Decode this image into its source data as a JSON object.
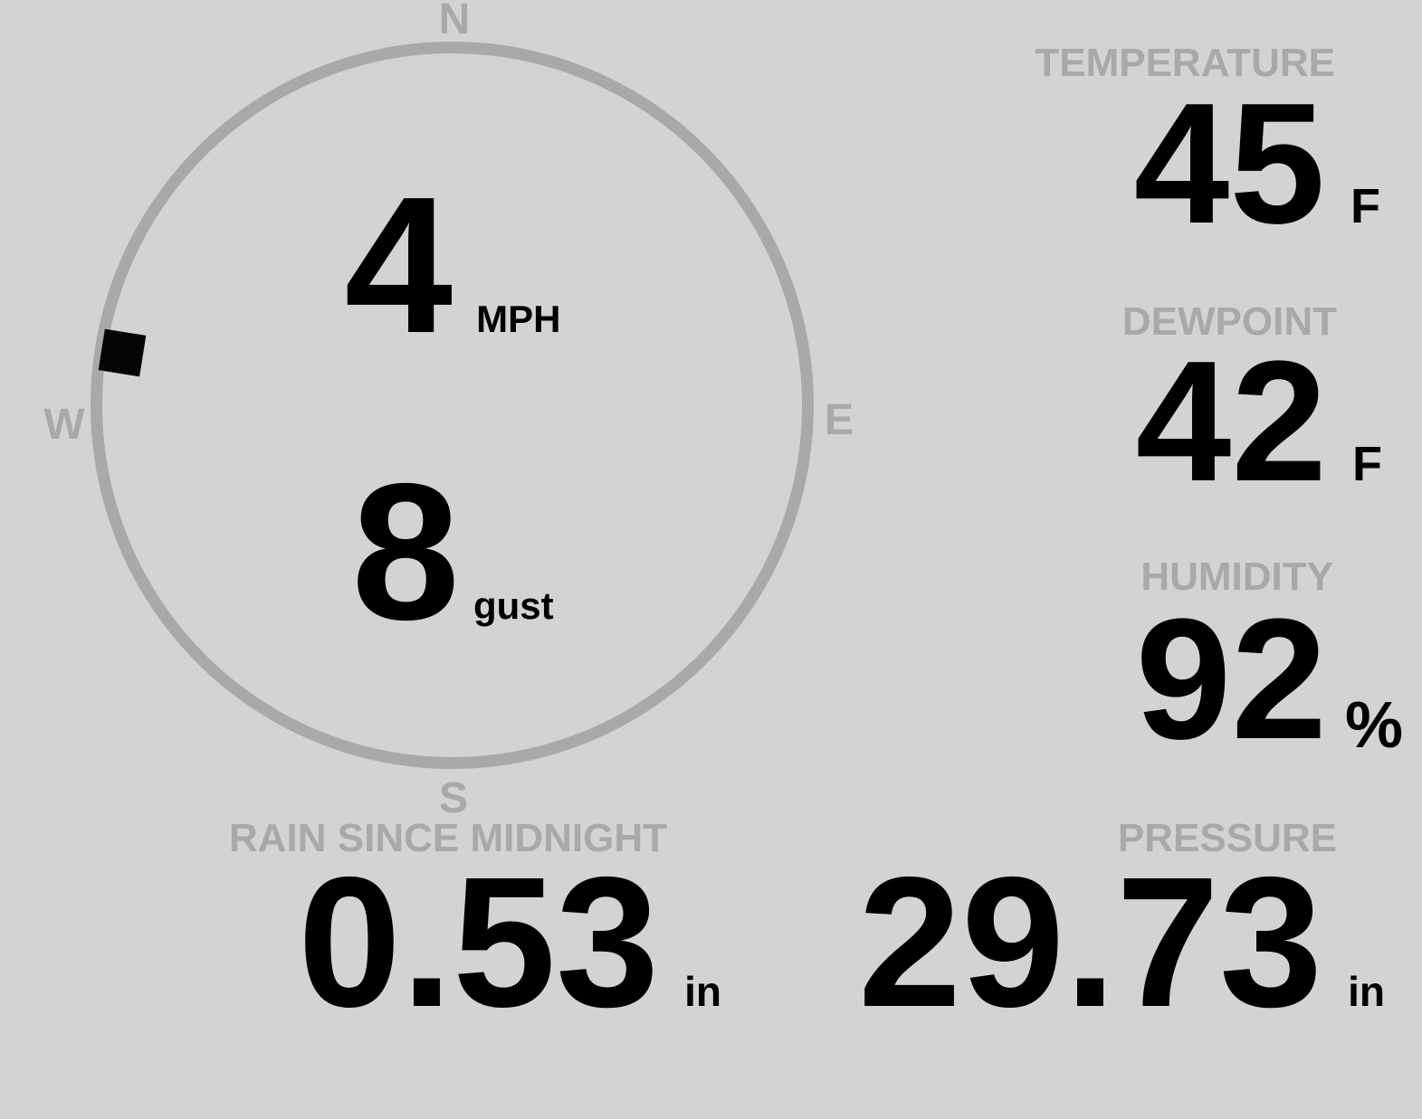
{
  "colors": {
    "background": "#d3d3d3",
    "muted_gray": "#a9a9a9",
    "value_black": "#000000"
  },
  "compass": {
    "cardinal": {
      "north": "N",
      "east": "E",
      "south": "S",
      "west": "W"
    },
    "wind": {
      "speed": "4",
      "speed_unit": "MPH",
      "gust": "8",
      "gust_unit": "gust",
      "direction_degrees": 279
    }
  },
  "metrics": {
    "temperature": {
      "label": "TEMPERATURE",
      "value": "45",
      "unit": "F"
    },
    "dewpoint": {
      "label": "DEWPOINT",
      "value": "42",
      "unit": "F"
    },
    "humidity": {
      "label": "HUMIDITY",
      "value": "92",
      "unit": "%"
    },
    "rain_since_midnight": {
      "label": "RAIN SINCE MIDNIGHT",
      "value": "0.53",
      "unit": "in"
    },
    "pressure": {
      "label": "PRESSURE",
      "value": "29.73",
      "unit": "in"
    }
  }
}
